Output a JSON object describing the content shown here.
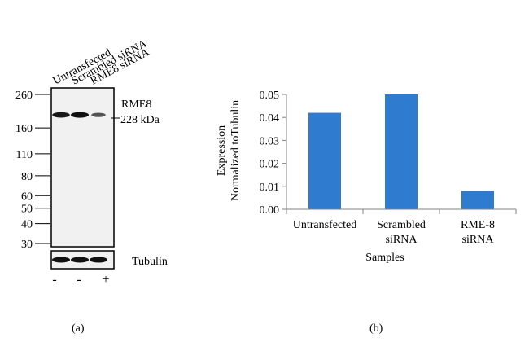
{
  "panel_a": {
    "lanes": [
      "Untransfected",
      "Scrambled siRNA",
      "RME8 siRNA"
    ],
    "mw_markers": [
      {
        "label": "260",
        "value": 260
      },
      {
        "label": "160",
        "value": 160
      },
      {
        "label": "110",
        "value": 110
      },
      {
        "label": "80",
        "value": 80
      },
      {
        "label": "60",
        "value": 60
      },
      {
        "label": "50",
        "value": 50
      },
      {
        "label": "40",
        "value": 40
      },
      {
        "label": "30",
        "value": 30
      }
    ],
    "band_label": "RME8",
    "band_kda_label": "228 kDa",
    "band_intensity": [
      0.95,
      1.0,
      0.55
    ],
    "loading_control_label": "Tubulin",
    "treatment_signs": [
      "-",
      "-",
      "+"
    ],
    "panel_label": "(a)"
  },
  "chart_data": {
    "type": "bar",
    "categories": [
      "Untransfected",
      "Scrambled siRNA",
      "RME-8 siRNA"
    ],
    "category_lines": [
      [
        "Untransfected"
      ],
      [
        "Scrambled",
        "siRNA"
      ],
      [
        "RME-8",
        "siRNA"
      ]
    ],
    "values": [
      0.042,
      0.05,
      0.008
    ],
    "xlabel": "Samples",
    "ylabel_lines": [
      "Expression",
      "Normalized toTubulin"
    ],
    "ylim": [
      0,
      0.05
    ],
    "yticks": [
      0.0,
      0.01,
      0.02,
      0.03,
      0.04,
      0.05
    ],
    "ytick_labels": [
      "0.00",
      "0.01",
      "0.02",
      "0.03",
      "0.04",
      "0.05"
    ],
    "bar_color": "#2e7bcf",
    "grid": false,
    "panel_label": "(b)"
  }
}
